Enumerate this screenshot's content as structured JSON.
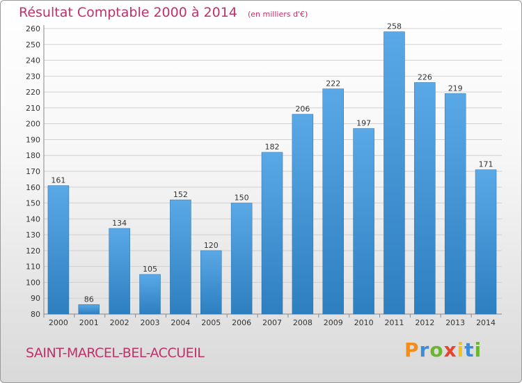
{
  "title": "Résultat Comptable 2000 à 2014",
  "subtitle": "(en milliers d'€)",
  "commune": "SAINT-MARCEL-BEL-ACCUEIL",
  "brand": {
    "letters": [
      "P",
      "r",
      "o",
      "x",
      "i",
      "t",
      "i"
    ],
    "colors": [
      "#f28c1b",
      "#3b8cd9",
      "#6bb52f",
      "#e8432e",
      "#f2c21b",
      "#3b8cd9",
      "#6bb52f"
    ]
  },
  "colors": {
    "bar_top": "#5aa8e6",
    "bar_bottom": "#2d7fc0",
    "title": "#c0306a"
  },
  "chart_data": {
    "type": "bar",
    "title": "Résultat Comptable 2000 à 2014",
    "subtitle": "(en milliers d'€)",
    "xlabel": "",
    "ylabel": "",
    "categories": [
      "2000",
      "2001",
      "2002",
      "2003",
      "2004",
      "2005",
      "2006",
      "2007",
      "2008",
      "2009",
      "2010",
      "2011",
      "2012",
      "2013",
      "2014"
    ],
    "values": [
      161,
      86,
      134,
      105,
      152,
      120,
      150,
      182,
      206,
      222,
      197,
      258,
      226,
      219,
      171
    ],
    "ylim": [
      80,
      260
    ],
    "yticks": [
      80,
      90,
      100,
      110,
      120,
      130,
      140,
      150,
      160,
      170,
      180,
      190,
      200,
      210,
      220,
      230,
      240,
      250,
      260
    ],
    "grid": true
  }
}
